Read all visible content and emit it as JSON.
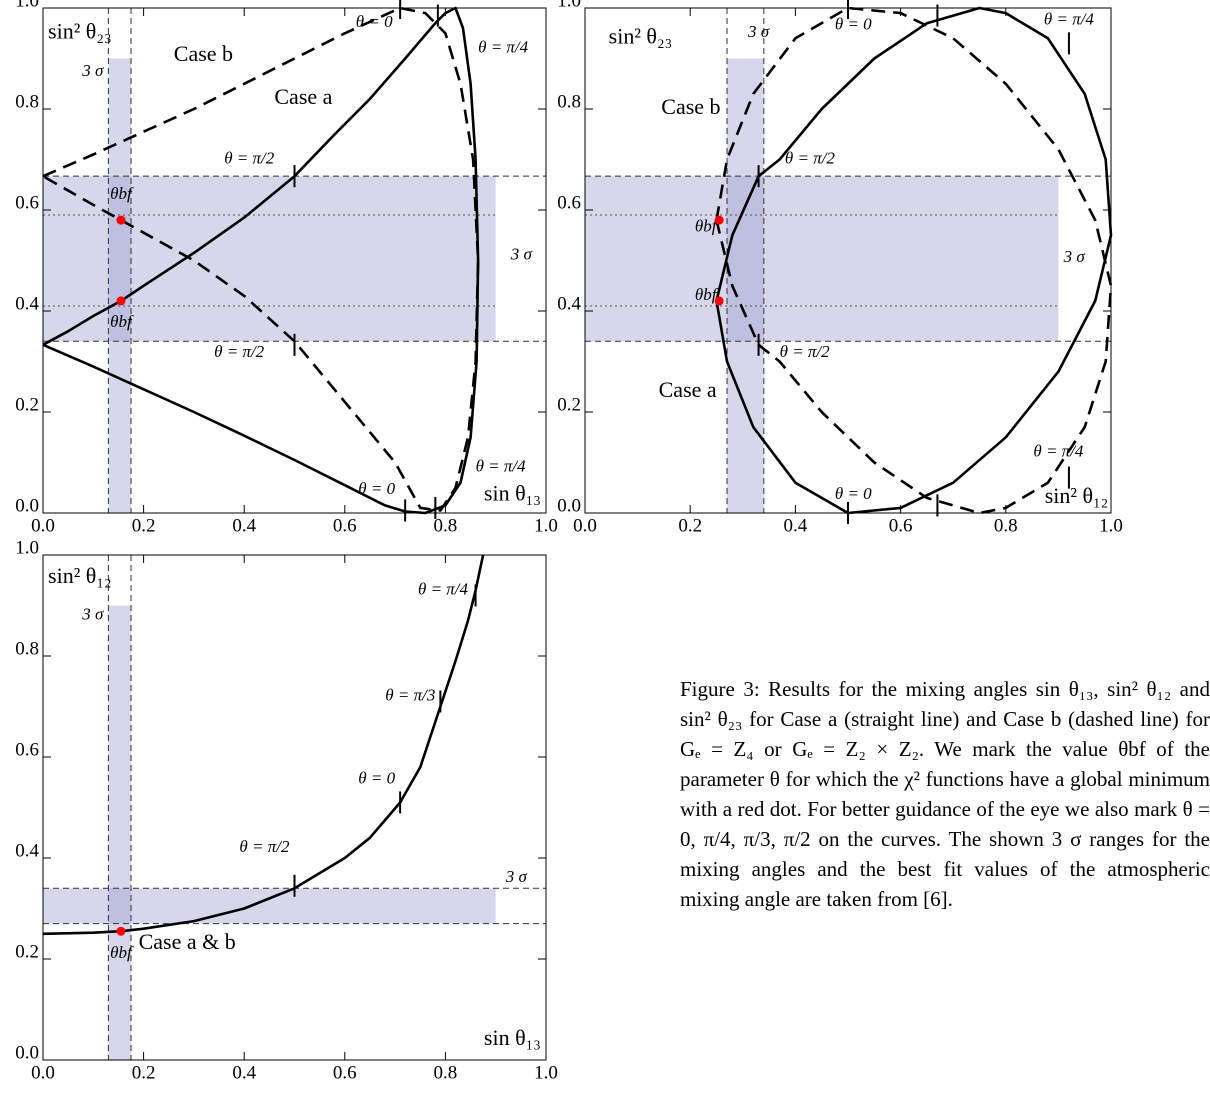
{
  "chart_data": [
    {
      "type": "line",
      "xlabel": "sin θ₁₃",
      "ylabel": "sin² θ₂₃",
      "xlim": [
        0,
        1
      ],
      "ylim": [
        0,
        1
      ],
      "xticks": [
        {
          "value": 0,
          "label": "0.0"
        },
        {
          "value": 0.2,
          "label": "0.2"
        },
        {
          "value": 0.4,
          "label": "0.4"
        },
        {
          "value": 0.6,
          "label": "0.6"
        },
        {
          "value": 0.8,
          "label": "0.8"
        },
        {
          "value": 1,
          "label": "1.0"
        }
      ],
      "yticks": [
        {
          "value": 0,
          "label": "0.0"
        },
        {
          "value": 0.2,
          "label": "0.2"
        },
        {
          "value": 0.4,
          "label": "0.4"
        },
        {
          "value": 0.6,
          "label": "0.6"
        },
        {
          "value": 0.8,
          "label": "0.8"
        },
        {
          "value": 1,
          "label": "1.0"
        }
      ],
      "series": [
        {
          "name": "Case a",
          "color": "#000000",
          "dash": false,
          "x": [
            0,
            0.1,
            0.2,
            0.3,
            0.4,
            0.5,
            0.6,
            0.68,
            0.72,
            0.76,
            0.8,
            0.83,
            0.85,
            0.862,
            0.865,
            0.86,
            0.85,
            0.835,
            0.82,
            0.8,
            0.78,
            0.72,
            0.65,
            0.58,
            0.5,
            0.4,
            0.3,
            0.2,
            0.155,
            0.1,
            0.05,
            0
          ],
          "values": [
            0.333,
            0.29,
            0.245,
            0.2,
            0.153,
            0.105,
            0.055,
            0.015,
            0.003,
            0,
            0.015,
            0.06,
            0.15,
            0.3,
            0.5,
            0.7,
            0.85,
            0.96,
            1,
            0.99,
            0.97,
            0.9,
            0.82,
            0.75,
            0.667,
            0.585,
            0.515,
            0.45,
            0.42,
            0.39,
            0.36,
            0.333
          ]
        },
        {
          "name": "Case b",
          "color": "#000000",
          "dash": true,
          "x": [
            0,
            0.1,
            0.2,
            0.3,
            0.4,
            0.5,
            0.6,
            0.71,
            0.76,
            0.8,
            0.83,
            0.855,
            0.865,
            0.86,
            0.845,
            0.82,
            0.79,
            0.75,
            0.7,
            0.6,
            0.5,
            0.4,
            0.3,
            0.2,
            0.155,
            0.1,
            0
          ],
          "values": [
            0.667,
            0.71,
            0.755,
            0.8,
            0.85,
            0.9,
            0.95,
            1,
            0.99,
            0.95,
            0.85,
            0.7,
            0.5,
            0.3,
            0.15,
            0.05,
            0.005,
            0.01,
            0.1,
            0.22,
            0.34,
            0.43,
            0.5,
            0.555,
            0.58,
            0.61,
            0.667
          ]
        }
      ],
      "sigma_ranges": {
        "x": [
          0.13,
          0.175
        ],
        "y": [
          0.34,
          0.667
        ]
      },
      "band_color": "#9a9acf",
      "best_fit_lines": [
        0.41,
        0.59
      ],
      "best_fit": {
        "x": [
          0.155,
          0.155
        ],
        "values": [
          0.58,
          0.42
        ],
        "color": "#ff0000"
      },
      "annotations": [
        "θ = 0",
        "θ = π/4",
        "θ = π/2",
        "θ = π/2",
        "θ = 0",
        "θ = π/4",
        "θbf",
        "θbf",
        "3 σ",
        "3 σ"
      ]
    },
    {
      "type": "line",
      "xlabel": "sin² θ₁₂",
      "ylabel": "sin² θ₂₃",
      "xlim": [
        0,
        1
      ],
      "ylim": [
        0,
        1
      ],
      "xticks": [
        {
          "value": 0,
          "label": "0.0"
        },
        {
          "value": 0.2,
          "label": "0.2"
        },
        {
          "value": 0.4,
          "label": "0.4"
        },
        {
          "value": 0.6,
          "label": "0.6"
        },
        {
          "value": 0.8,
          "label": "0.8"
        },
        {
          "value": 1,
          "label": "1.0"
        }
      ],
      "yticks": [
        {
          "value": 0,
          "label": "0.0"
        },
        {
          "value": 0.2,
          "label": "0.2"
        },
        {
          "value": 0.4,
          "label": "0.4"
        },
        {
          "value": 0.6,
          "label": "0.6"
        },
        {
          "value": 0.8,
          "label": "0.8"
        },
        {
          "value": 1,
          "label": "1.0"
        }
      ],
      "series": [
        {
          "name": "Case a",
          "color": "#000000",
          "dash": false,
          "x": [
            0.25,
            0.27,
            0.32,
            0.4,
            0.5,
            0.6,
            0.7,
            0.8,
            0.9,
            0.97,
            1.0,
            0.99,
            0.95,
            0.88,
            0.8,
            0.75,
            0.65,
            0.55,
            0.45,
            0.37,
            0.33,
            0.28,
            0.25
          ],
          "values": [
            0.42,
            0.3,
            0.17,
            0.06,
            0,
            0.01,
            0.06,
            0.15,
            0.28,
            0.42,
            0.55,
            0.7,
            0.83,
            0.94,
            0.99,
            1,
            0.97,
            0.9,
            0.8,
            0.7,
            0.667,
            0.55,
            0.42
          ]
        },
        {
          "name": "Case b",
          "color": "#000000",
          "dash": true,
          "x": [
            0.25,
            0.27,
            0.32,
            0.4,
            0.5,
            0.6,
            0.7,
            0.8,
            0.9,
            0.97,
            1.0,
            0.99,
            0.95,
            0.88,
            0.8,
            0.75,
            0.65,
            0.55,
            0.45,
            0.37,
            0.33,
            0.28,
            0.25
          ],
          "values": [
            0.58,
            0.7,
            0.83,
            0.94,
            1,
            0.99,
            0.94,
            0.85,
            0.72,
            0.58,
            0.45,
            0.3,
            0.17,
            0.06,
            0.01,
            0,
            0.03,
            0.1,
            0.2,
            0.3,
            0.333,
            0.45,
            0.58
          ]
        }
      ],
      "sigma_ranges": {
        "x": [
          0.27,
          0.34
        ],
        "y": [
          0.34,
          0.667
        ]
      },
      "band_color": "#9a9acf",
      "best_fit_lines": [
        0.41,
        0.59
      ],
      "best_fit": {
        "x": [
          0.255,
          0.255
        ],
        "values": [
          0.58,
          0.42
        ],
        "color": "#ff0000"
      },
      "annotations": [
        "θ = 0",
        "θ = π/4",
        "θ = π/2",
        "θ = π/2",
        "θ = 0",
        "θ = π/4",
        "θbf",
        "θbf",
        "3 σ",
        "3 σ"
      ]
    },
    {
      "type": "line",
      "xlabel": "sin θ₁₃",
      "ylabel": "sin² θ₁₂",
      "xlim": [
        0,
        1
      ],
      "ylim": [
        0,
        1
      ],
      "xticks": [
        {
          "value": 0,
          "label": "0.0"
        },
        {
          "value": 0.2,
          "label": "0.2"
        },
        {
          "value": 0.4,
          "label": "0.4"
        },
        {
          "value": 0.6,
          "label": "0.6"
        },
        {
          "value": 0.8,
          "label": "0.8"
        },
        {
          "value": 1,
          "label": "1.0"
        }
      ],
      "yticks": [
        {
          "value": 0,
          "label": "0.0"
        },
        {
          "value": 0.2,
          "label": "0.2"
        },
        {
          "value": 0.4,
          "label": "0.4"
        },
        {
          "value": 0.6,
          "label": "0.6"
        },
        {
          "value": 0.8,
          "label": "0.8"
        },
        {
          "value": 1,
          "label": "1.0"
        }
      ],
      "series": [
        {
          "name": "Case a & b",
          "color": "#000000",
          "dash": false,
          "x": [
            0,
            0.1,
            0.155,
            0.2,
            0.3,
            0.4,
            0.5,
            0.6,
            0.65,
            0.71,
            0.75,
            0.79,
            0.82,
            0.845,
            0.86,
            0.875
          ],
          "values": [
            0.25,
            0.252,
            0.255,
            0.26,
            0.275,
            0.3,
            0.34,
            0.4,
            0.44,
            0.51,
            0.58,
            0.7,
            0.79,
            0.87,
            0.93,
            1
          ]
        }
      ],
      "sigma_ranges": {
        "x": [
          0.13,
          0.175
        ],
        "y": [
          0.27,
          0.34
        ]
      },
      "band_color": "#9a9acf",
      "best_fit_lines": [],
      "best_fit": {
        "x": [
          0.155
        ],
        "values": [
          0.255
        ],
        "color": "#ff0000"
      },
      "annotations": [
        "θ = π/4",
        "θ = π/3",
        "θ = 0",
        "θ = π/2",
        "θbf",
        "3 σ",
        "3 σ"
      ]
    }
  ],
  "caption": "Figure 3: Results for the mixing angles sin θ₁₃, sin² θ₁₂ and sin² θ₂₃ for Case a (straight line) and Case b (dashed line) for Gₑ = Z₄ or Gₑ = Z₂ × Z₂. We mark the value θbf of the parameter θ for which the χ² functions have a global minimum with a red dot. For better guidance of the eye we also mark θ = 0, π/4, π/3, π/2 on the curves. The shown 3 σ ranges for the mixing angles and the best fit values of the atmospheric mixing angle are taken from [6]."
}
